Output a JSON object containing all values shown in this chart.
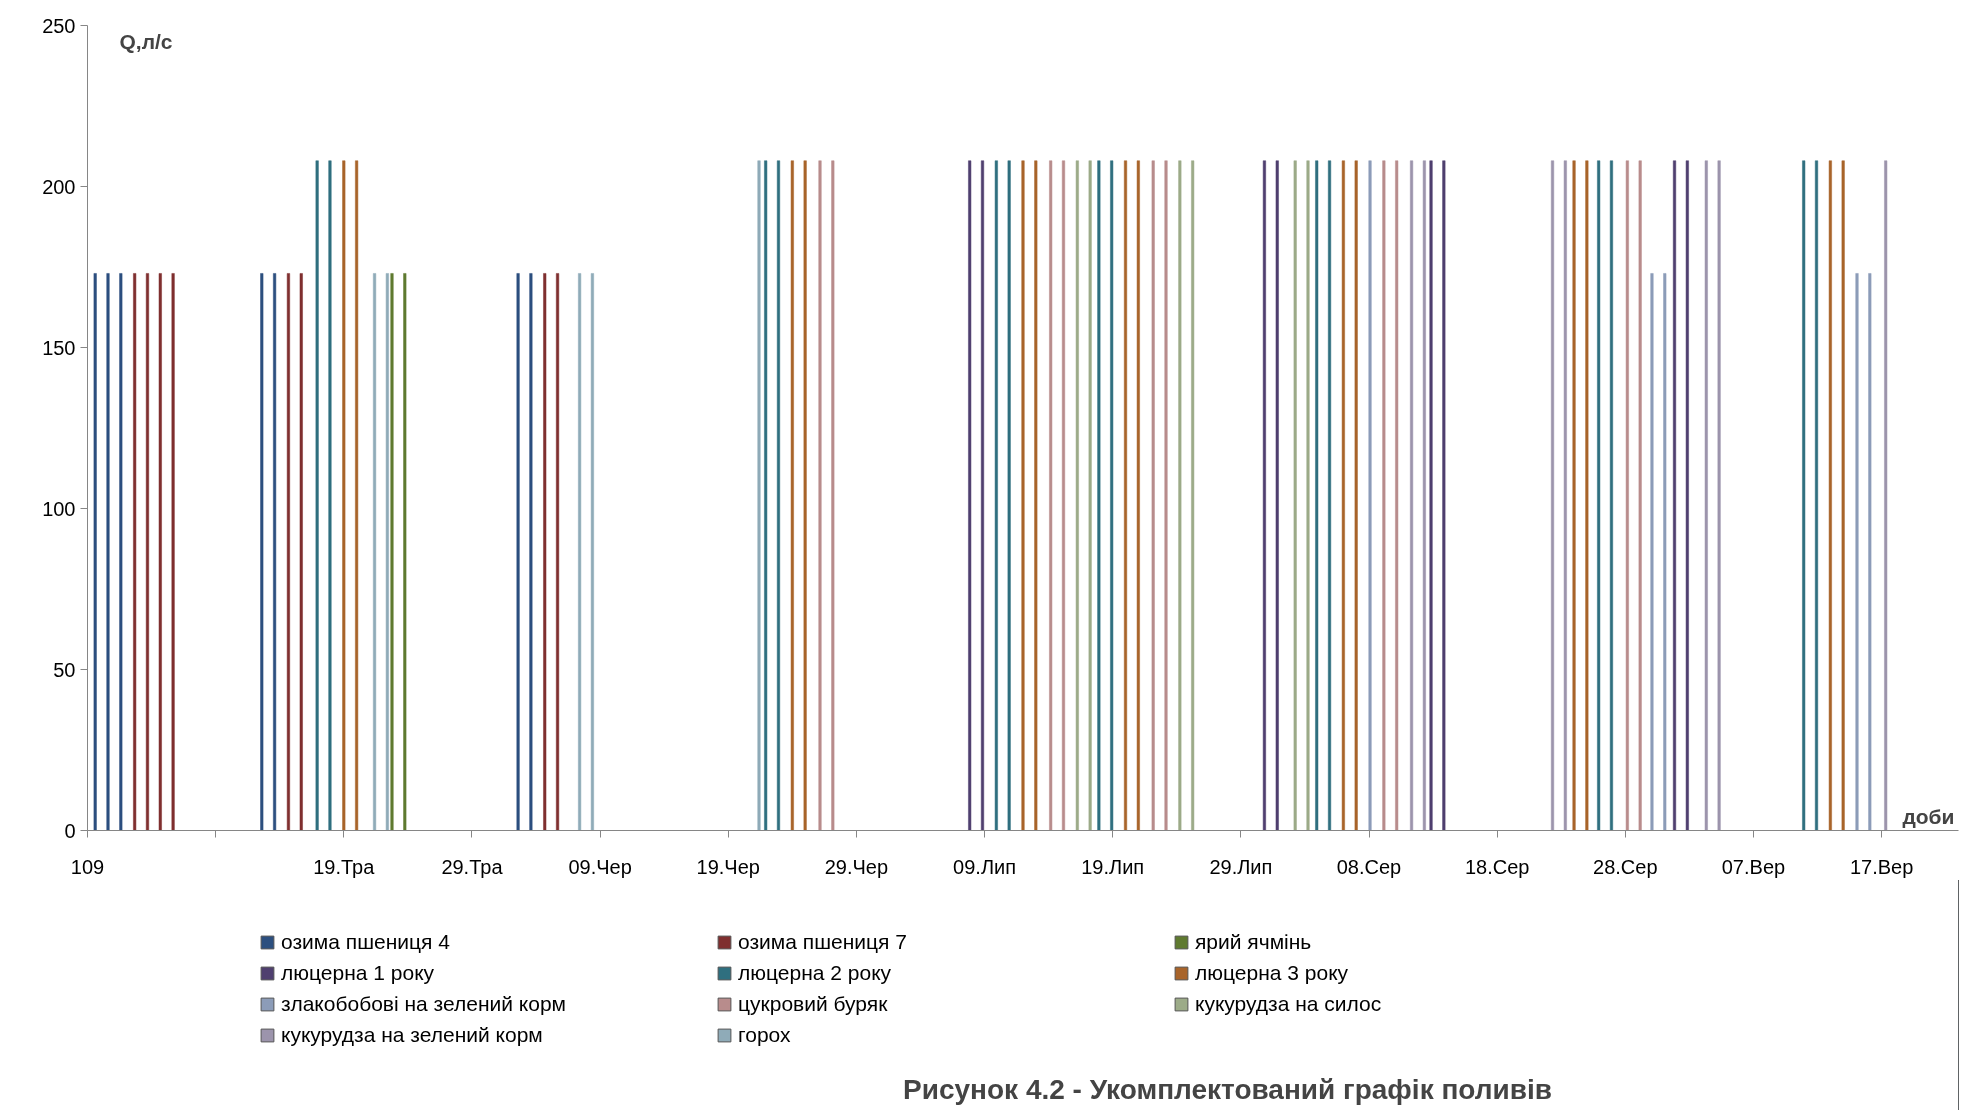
{
  "chart_data": {
    "type": "bar",
    "title": "Рисунок 4.2 - Укомплектований графік поливів",
    "xlabel": "доби",
    "ylabel": "Q,л/с",
    "categories": [
      "109",
      null,
      null,
      null,
      null,
      null,
      null,
      null,
      null,
      null,
      null,
      null,
      null,
      null,
      null,
      null,
      null,
      null,
      null,
      null,
      "19.Тра",
      null,
      null,
      null,
      null,
      null,
      null,
      null,
      null,
      null,
      "29.Тра",
      null,
      null,
      null,
      null,
      null,
      null,
      null,
      null,
      null,
      "09.Чер",
      null,
      null,
      null,
      null,
      null,
      null,
      null,
      null,
      null,
      "19.Чер",
      null,
      null,
      null,
      null,
      null,
      null,
      null,
      null,
      null,
      "29.Чер",
      null,
      null,
      null,
      null,
      null,
      null,
      null,
      null,
      null,
      "09.Лип",
      null,
      null,
      null,
      null,
      null,
      null,
      null,
      null,
      null,
      "19.Лип",
      null,
      null,
      null,
      null,
      null,
      null,
      null,
      null,
      null,
      "29.Лип",
      null,
      null,
      null,
      null,
      null,
      null,
      null,
      null,
      null,
      "08.Сер",
      null,
      null,
      null,
      null,
      null,
      null,
      null,
      null,
      null,
      "18.Сер",
      null,
      null,
      null,
      null,
      null,
      null,
      null,
      null,
      null,
      "28.Сер",
      null,
      null,
      null,
      null,
      null,
      null,
      null,
      null,
      null,
      "07.Вер",
      null,
      null,
      null,
      null,
      null,
      null,
      null,
      null,
      null,
      "17.Вер",
      null
    ],
    "ylim": [
      0,
      250
    ],
    "yticks": [
      0,
      50,
      100,
      150,
      200,
      250
    ],
    "grid": false,
    "legend": "bottom",
    "series": [
      {
        "name": "озима пшениця 4",
        "color": "#2c4f7f",
        "values": [
          null,
          173,
          173,
          173,
          null,
          null,
          null,
          null,
          null,
          null,
          null,
          null,
          null,
          null,
          173,
          173,
          null,
          null,
          null,
          null,
          null,
          null,
          null,
          null,
          null,
          null,
          null,
          null,
          null,
          null,
          null,
          null,
          null,
          null,
          173,
          173,
          null,
          null,
          null,
          null,
          null,
          null,
          null,
          null,
          null,
          null,
          null,
          null,
          null,
          null,
          null,
          null,
          null,
          null,
          null,
          null,
          null,
          null,
          null,
          null,
          null,
          null,
          null,
          null,
          null,
          null,
          null,
          null,
          null,
          null,
          null,
          null,
          null,
          null,
          null,
          null,
          null,
          null,
          null,
          null,
          null,
          null,
          null,
          null,
          null,
          null,
          null,
          null,
          null,
          null,
          null,
          null,
          null,
          null,
          null,
          null,
          null,
          null,
          null,
          null,
          null,
          null,
          null,
          null,
          null,
          null,
          null,
          null,
          null,
          null,
          null,
          null,
          null,
          null,
          null,
          null,
          null,
          null,
          null,
          null,
          null,
          null,
          null,
          null,
          null,
          null,
          null,
          null,
          null,
          null,
          null,
          null,
          null,
          null,
          null,
          null,
          null,
          null,
          null,
          null,
          null,
          null
        ]
      },
      {
        "name": "озима пшениця 7",
        "color": "#7f2f2f",
        "values": [
          null,
          null,
          null,
          null,
          173,
          173,
          173,
          173,
          null,
          null,
          null,
          null,
          null,
          null,
          null,
          null,
          173,
          173,
          null,
          null,
          null,
          null,
          null,
          null,
          null,
          null,
          null,
          null,
          null,
          null,
          null,
          null,
          null,
          null,
          null,
          null,
          173,
          173,
          null,
          null,
          null,
          null,
          null,
          null,
          null,
          null,
          null,
          null,
          null,
          null,
          null,
          null,
          null,
          null,
          null,
          null,
          null,
          null,
          null,
          null,
          null,
          null,
          null,
          null,
          null,
          null,
          null,
          null,
          null,
          null,
          null,
          null,
          null,
          null,
          null,
          null,
          null,
          null,
          null,
          null,
          null,
          null,
          null,
          null,
          null,
          null,
          null,
          null,
          null,
          null,
          null,
          null,
          null,
          null,
          null,
          null,
          null,
          null,
          null,
          null,
          null,
          null,
          null,
          null,
          null,
          null,
          null,
          null,
          null,
          null,
          null,
          null,
          null,
          null,
          null,
          null,
          null,
          null,
          null,
          null,
          null,
          null,
          null,
          null,
          null,
          null,
          null,
          null,
          null,
          null,
          null,
          null,
          null,
          null,
          null,
          null,
          null,
          null,
          null,
          null,
          null,
          null
        ]
      },
      {
        "name": "ярий ячмінь",
        "color": "#5f7a30",
        "values": [
          null,
          null,
          null,
          null,
          null,
          null,
          null,
          null,
          null,
          null,
          null,
          null,
          null,
          null,
          null,
          null,
          null,
          null,
          null,
          null,
          null,
          null,
          null,
          null,
          173,
          173,
          null,
          null,
          null,
          null,
          null,
          null,
          null,
          null,
          null,
          null,
          null,
          null,
          null,
          null,
          null,
          null,
          null,
          null,
          null,
          null,
          null,
          null,
          null,
          null,
          null,
          null,
          null,
          null,
          null,
          null,
          null,
          null,
          null,
          null,
          null,
          null,
          null,
          null,
          null,
          null,
          null,
          null,
          null,
          null,
          null,
          null,
          null,
          null,
          null,
          null,
          null,
          null,
          null,
          null,
          null,
          null,
          null,
          null,
          null,
          null,
          null,
          null,
          null,
          null,
          null,
          null,
          null,
          null,
          null,
          null,
          null,
          null,
          null,
          null,
          null,
          null,
          null,
          null,
          null,
          null,
          null,
          null,
          null,
          null,
          null,
          null,
          null,
          null,
          null,
          null,
          null,
          null,
          null,
          null,
          null,
          null,
          null,
          null,
          null,
          null,
          null,
          null,
          null,
          null,
          null,
          null,
          null,
          null,
          null,
          null,
          null,
          null,
          null,
          null,
          null,
          null
        ]
      },
      {
        "name": "люцерна 1 року",
        "color": "#4f3f6f",
        "values": [
          null,
          null,
          null,
          null,
          null,
          null,
          null,
          null,
          null,
          null,
          null,
          null,
          null,
          null,
          null,
          null,
          null,
          null,
          null,
          null,
          null,
          null,
          null,
          null,
          null,
          null,
          null,
          null,
          null,
          null,
          null,
          null,
          null,
          null,
          null,
          null,
          null,
          null,
          null,
          null,
          null,
          null,
          null,
          null,
          null,
          null,
          null,
          null,
          null,
          null,
          null,
          null,
          null,
          null,
          null,
          null,
          null,
          null,
          null,
          null,
          null,
          null,
          null,
          null,
          null,
          null,
          null,
          null,
          null,
          208,
          208,
          null,
          null,
          null,
          null,
          null,
          null,
          null,
          null,
          null,
          null,
          null,
          null,
          null,
          null,
          null,
          null,
          null,
          null,
          null,
          null,
          null,
          208,
          208,
          null,
          null,
          null,
          null,
          null,
          null,
          null,
          null,
          null,
          null,
          null,
          208,
          208,
          null,
          null,
          null,
          null,
          null,
          null,
          null,
          null,
          null,
          null,
          null,
          null,
          null,
          null,
          null,
          null,
          null,
          208,
          208,
          null,
          null,
          null,
          null,
          null,
          null,
          null,
          null,
          null,
          null,
          null,
          null,
          null,
          null,
          null,
          null
        ]
      },
      {
        "name": "люцерна 2 року",
        "color": "#2f6f7f",
        "values": [
          null,
          null,
          null,
          null,
          null,
          null,
          null,
          null,
          null,
          null,
          null,
          null,
          null,
          null,
          null,
          null,
          null,
          null,
          208,
          208,
          null,
          null,
          null,
          null,
          null,
          null,
          null,
          null,
          null,
          null,
          null,
          null,
          null,
          null,
          null,
          null,
          null,
          null,
          null,
          null,
          null,
          null,
          null,
          null,
          null,
          null,
          null,
          null,
          null,
          null,
          null,
          null,
          null,
          208,
          208,
          null,
          null,
          null,
          null,
          null,
          null,
          null,
          null,
          null,
          null,
          null,
          null,
          null,
          null,
          null,
          null,
          208,
          208,
          null,
          null,
          null,
          null,
          null,
          null,
          208,
          208,
          null,
          null,
          null,
          null,
          null,
          null,
          null,
          null,
          null,
          null,
          null,
          null,
          null,
          null,
          null,
          208,
          208,
          null,
          null,
          null,
          null,
          null,
          null,
          null,
          null,
          null,
          null,
          null,
          null,
          null,
          null,
          null,
          null,
          null,
          null,
          null,
          null,
          208,
          208,
          null,
          null,
          null,
          null,
          null,
          null,
          null,
          null,
          null,
          null,
          null,
          null,
          null,
          null,
          208,
          208,
          null,
          null,
          null,
          null,
          null,
          null
        ]
      },
      {
        "name": "люцерна 3 року",
        "color": "#a8642a",
        "values": [
          null,
          null,
          null,
          null,
          null,
          null,
          null,
          null,
          null,
          null,
          null,
          null,
          null,
          null,
          null,
          null,
          null,
          null,
          null,
          null,
          208,
          208,
          null,
          null,
          null,
          null,
          null,
          null,
          null,
          null,
          null,
          null,
          null,
          null,
          null,
          null,
          null,
          null,
          null,
          null,
          null,
          null,
          null,
          null,
          null,
          null,
          null,
          null,
          null,
          null,
          null,
          null,
          null,
          null,
          null,
          208,
          208,
          null,
          null,
          null,
          null,
          null,
          null,
          null,
          null,
          null,
          null,
          null,
          null,
          null,
          null,
          null,
          null,
          208,
          208,
          null,
          null,
          null,
          null,
          null,
          null,
          208,
          208,
          null,
          null,
          null,
          null,
          null,
          null,
          null,
          null,
          null,
          null,
          null,
          null,
          null,
          null,
          null,
          208,
          208,
          null,
          null,
          null,
          null,
          null,
          null,
          null,
          null,
          null,
          null,
          null,
          null,
          null,
          null,
          null,
          null,
          208,
          208,
          null,
          null,
          null,
          null,
          null,
          null,
          null,
          null,
          null,
          null,
          null,
          null,
          null,
          null,
          null,
          null,
          null,
          null,
          208,
          208,
          null,
          null,
          null,
          null
        ]
      },
      {
        "name": "злакобобові на зелений корм",
        "color": "#8c9cb8",
        "values": [
          null,
          null,
          null,
          null,
          null,
          null,
          null,
          null,
          null,
          null,
          null,
          null,
          null,
          null,
          null,
          null,
          null,
          null,
          null,
          null,
          null,
          null,
          null,
          null,
          null,
          null,
          null,
          null,
          null,
          null,
          null,
          null,
          null,
          null,
          null,
          null,
          null,
          null,
          null,
          null,
          null,
          null,
          null,
          null,
          null,
          null,
          null,
          null,
          null,
          null,
          null,
          null,
          null,
          null,
          null,
          null,
          null,
          null,
          null,
          null,
          null,
          null,
          null,
          null,
          null,
          null,
          null,
          null,
          null,
          null,
          null,
          null,
          null,
          null,
          null,
          null,
          null,
          null,
          null,
          null,
          null,
          null,
          null,
          null,
          null,
          null,
          null,
          null,
          null,
          null,
          null,
          null,
          null,
          null,
          null,
          null,
          null,
          null,
          null,
          null,
          208,
          null,
          null,
          null,
          null,
          null,
          null,
          null,
          null,
          null,
          null,
          null,
          null,
          null,
          null,
          null,
          null,
          null,
          null,
          null,
          null,
          null,
          173,
          173,
          null,
          null,
          null,
          null,
          null,
          null,
          null,
          null,
          null,
          null,
          null,
          null,
          null,
          null,
          173,
          173,
          null,
          null
        ]
      },
      {
        "name": "цукровий буряк",
        "color": "#b88c8c",
        "values": [
          null,
          null,
          null,
          null,
          null,
          null,
          null,
          null,
          null,
          null,
          null,
          null,
          null,
          null,
          null,
          null,
          null,
          null,
          null,
          null,
          null,
          null,
          null,
          null,
          null,
          null,
          null,
          null,
          null,
          null,
          null,
          null,
          null,
          null,
          null,
          null,
          null,
          null,
          null,
          null,
          null,
          null,
          null,
          null,
          null,
          null,
          null,
          null,
          null,
          null,
          null,
          null,
          null,
          null,
          null,
          null,
          null,
          208,
          208,
          null,
          null,
          null,
          null,
          null,
          null,
          null,
          null,
          null,
          null,
          null,
          null,
          null,
          null,
          null,
          null,
          208,
          208,
          null,
          null,
          null,
          null,
          null,
          null,
          208,
          208,
          null,
          null,
          null,
          null,
          null,
          null,
          null,
          null,
          null,
          null,
          null,
          null,
          null,
          null,
          null,
          null,
          208,
          208,
          null,
          null,
          null,
          null,
          null,
          null,
          null,
          null,
          null,
          null,
          null,
          null,
          null,
          null,
          null,
          null,
          null,
          208,
          208,
          null,
          null,
          null,
          null,
          null,
          null,
          null,
          null,
          null,
          null,
          null,
          null,
          null,
          null,
          null,
          null,
          null,
          null,
          null,
          null
        ]
      },
      {
        "name": "кукурудза на силос",
        "color": "#9cab88",
        "values": [
          null,
          null,
          null,
          null,
          null,
          null,
          null,
          null,
          null,
          null,
          null,
          null,
          null,
          null,
          null,
          null,
          null,
          null,
          null,
          null,
          null,
          null,
          null,
          null,
          null,
          null,
          null,
          null,
          null,
          null,
          null,
          null,
          null,
          null,
          null,
          null,
          null,
          null,
          null,
          null,
          null,
          null,
          null,
          null,
          null,
          null,
          null,
          null,
          null,
          null,
          null,
          null,
          null,
          null,
          null,
          null,
          null,
          null,
          null,
          null,
          null,
          null,
          null,
          null,
          null,
          null,
          null,
          null,
          null,
          null,
          null,
          null,
          null,
          null,
          null,
          null,
          null,
          208,
          208,
          null,
          null,
          null,
          null,
          null,
          null,
          208,
          208,
          null,
          null,
          null,
          null,
          null,
          null,
          null,
          208,
          208,
          null,
          null,
          null,
          null,
          null,
          null,
          null,
          null,
          null,
          null,
          null,
          null,
          null,
          null,
          null,
          null,
          null,
          null,
          null,
          null,
          null,
          null,
          null,
          null,
          null,
          null,
          null,
          null,
          null,
          null,
          null,
          null,
          null,
          null,
          null,
          null,
          null,
          null,
          null,
          null,
          null,
          null,
          null,
          null,
          null,
          null
        ]
      },
      {
        "name": "кукурудза на зелений корм",
        "color": "#9c94ac",
        "values": [
          null,
          null,
          null,
          null,
          null,
          null,
          null,
          null,
          null,
          null,
          null,
          null,
          null,
          null,
          null,
          null,
          null,
          null,
          null,
          null,
          null,
          null,
          null,
          null,
          null,
          null,
          null,
          null,
          null,
          null,
          null,
          null,
          null,
          null,
          null,
          null,
          null,
          null,
          null,
          null,
          null,
          null,
          null,
          null,
          null,
          null,
          null,
          null,
          null,
          null,
          null,
          null,
          null,
          null,
          null,
          null,
          null,
          null,
          null,
          null,
          null,
          null,
          null,
          null,
          null,
          null,
          null,
          null,
          null,
          null,
          null,
          null,
          null,
          null,
          null,
          null,
          null,
          null,
          null,
          null,
          null,
          null,
          null,
          null,
          null,
          null,
          null,
          null,
          null,
          null,
          null,
          null,
          null,
          null,
          null,
          null,
          null,
          null,
          null,
          null,
          null,
          null,
          null,
          208,
          208,
          null,
          null,
          null,
          null,
          null,
          null,
          null,
          null,
          null,
          208,
          208,
          null,
          null,
          null,
          null,
          null,
          null,
          null,
          null,
          null,
          null,
          208,
          208,
          null,
          null,
          null,
          null,
          null,
          null,
          null,
          null,
          null,
          null,
          null,
          null,
          208,
          null
        ]
      },
      {
        "name": "горох",
        "color": "#8fabb8",
        "values": [
          null,
          null,
          null,
          null,
          null,
          null,
          null,
          null,
          null,
          null,
          null,
          null,
          null,
          null,
          null,
          null,
          null,
          null,
          null,
          null,
          null,
          null,
          173,
          173,
          null,
          null,
          null,
          null,
          null,
          null,
          null,
          null,
          null,
          null,
          null,
          null,
          null,
          null,
          173,
          173,
          null,
          null,
          null,
          null,
          null,
          null,
          null,
          null,
          null,
          null,
          null,
          null,
          208,
          null,
          null,
          null,
          null,
          null,
          null,
          null,
          null,
          null,
          null,
          null,
          null,
          null,
          null,
          null,
          null,
          null,
          null,
          null,
          null,
          null,
          null,
          null,
          null,
          null,
          null,
          null,
          null,
          null,
          null,
          null,
          null,
          null,
          null,
          null,
          null,
          null,
          null,
          null,
          null,
          null,
          null,
          null,
          null,
          null,
          null,
          null,
          null,
          null,
          null,
          null,
          null,
          null,
          null,
          null,
          null,
          null,
          null,
          null,
          null,
          null,
          null,
          null,
          null,
          null,
          null,
          null,
          null,
          null,
          null,
          null,
          null,
          null,
          null,
          null,
          null,
          null,
          null,
          null,
          null,
          null,
          null,
          null,
          null,
          null,
          null,
          null,
          null,
          null
        ]
      }
    ]
  }
}
